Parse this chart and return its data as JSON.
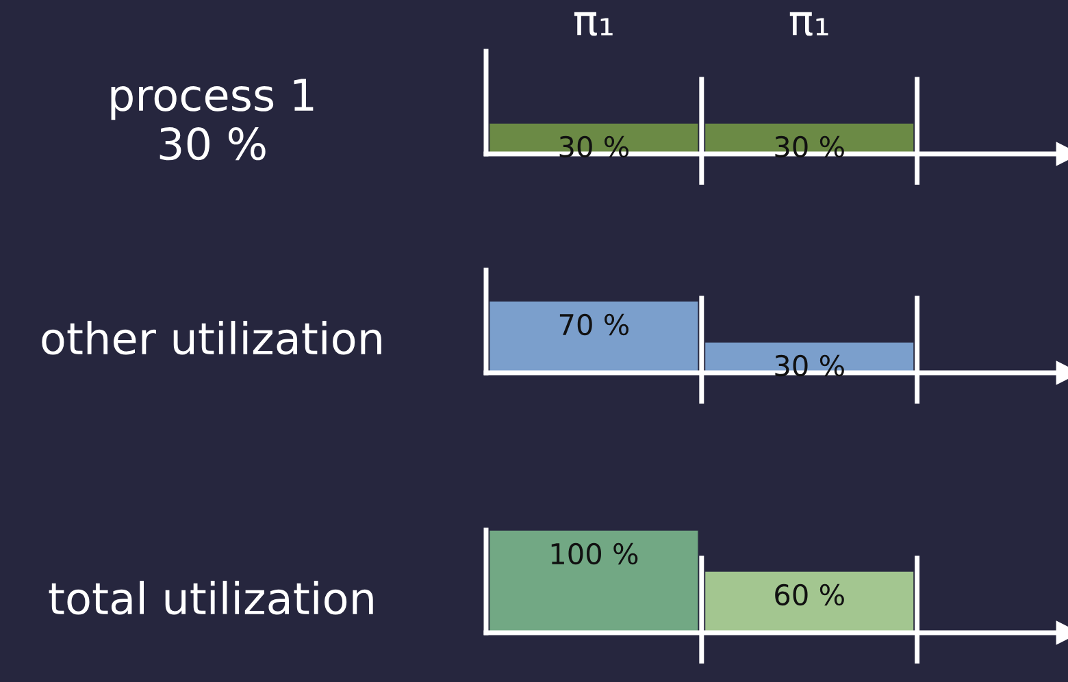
{
  "chart_data": [
    {
      "type": "bar",
      "ylabel": "process 1\n30 %",
      "categories": [
        "π₁",
        "π₁"
      ],
      "values": [
        30,
        30
      ],
      "value_labels": [
        "30 %",
        "30 %"
      ],
      "colors": [
        "#6b8a45",
        "#6b8a45"
      ],
      "ylim": [
        0,
        100
      ],
      "tick_labels": "x",
      "grid": false,
      "legend": false
    },
    {
      "type": "bar",
      "ylabel": "other utilization",
      "categories": [
        null,
        null
      ],
      "values": [
        70,
        30
      ],
      "value_labels": [
        "70 %",
        "30 %"
      ],
      "colors": [
        "#7b9fcc",
        "#7b9fcc"
      ],
      "ylim": [
        0,
        100
      ],
      "grid": false,
      "legend": false
    },
    {
      "type": "bar",
      "ylabel": "total utilization",
      "categories": [
        null,
        null
      ],
      "values": [
        100,
        60
      ],
      "value_labels": [
        "100 %",
        "60 %"
      ],
      "colors": [
        "#72a884",
        "#a3c690"
      ],
      "ylim": [
        0,
        100
      ],
      "grid": false,
      "legend": false
    }
  ]
}
